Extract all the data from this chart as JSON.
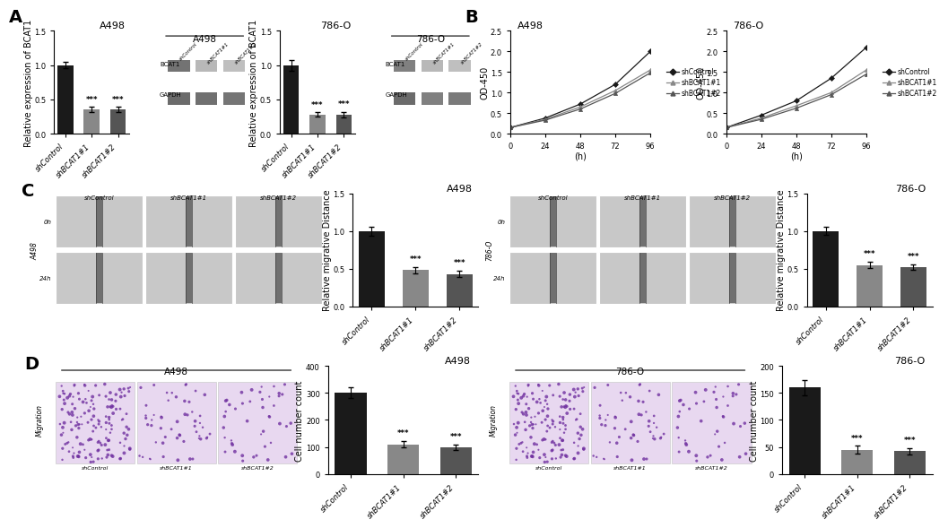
{
  "panel_A": {
    "bar_chart_A498": {
      "title": "A498",
      "categories": [
        "shControl",
        "shBCAT1#1",
        "shBCAT1#2"
      ],
      "values": [
        1.0,
        0.35,
        0.35
      ],
      "errors": [
        0.05,
        0.04,
        0.04
      ],
      "colors": [
        "#1a1a1a",
        "#888888",
        "#555555"
      ],
      "ylabel": "Relative expression of BCAT1",
      "ylim": [
        0,
        1.5
      ],
      "yticks": [
        0.0,
        0.5,
        1.0,
        1.5
      ],
      "sig_labels": [
        "",
        "***",
        "***"
      ]
    },
    "bar_chart_786O": {
      "title": "786-O",
      "categories": [
        "shControl",
        "shBCAT1#1",
        "shBCAT1#2"
      ],
      "values": [
        1.0,
        0.28,
        0.28
      ],
      "errors": [
        0.08,
        0.03,
        0.04
      ],
      "colors": [
        "#1a1a1a",
        "#888888",
        "#555555"
      ],
      "ylabel": "Relative expression of BCAT1",
      "ylim": [
        0,
        1.5
      ],
      "yticks": [
        0.0,
        0.5,
        1.0,
        1.5
      ],
      "sig_labels": [
        "",
        "***",
        "***"
      ]
    }
  },
  "panel_B": {
    "line_chart_A498": {
      "title": "A498",
      "xlabel": "(h)",
      "ylabel": "OD-450",
      "xlim": [
        0,
        96
      ],
      "ylim": [
        0.0,
        2.5
      ],
      "xticks": [
        0,
        24,
        48,
        72,
        96
      ],
      "yticks": [
        0.0,
        0.5,
        1.0,
        1.5,
        2.0,
        2.5
      ],
      "series": {
        "shControl": {
          "x": [
            0,
            24,
            48,
            72,
            96
          ],
          "y": [
            0.15,
            0.38,
            0.72,
            1.2,
            2.0
          ],
          "color": "#1a1a1a",
          "marker": "D"
        },
        "shBCAT1#1": {
          "x": [
            0,
            24,
            48,
            72,
            96
          ],
          "y": [
            0.15,
            0.35,
            0.65,
            1.05,
            1.55
          ],
          "color": "#888888",
          "marker": "^"
        },
        "shBCAT1#2": {
          "x": [
            0,
            24,
            48,
            72,
            96
          ],
          "y": [
            0.15,
            0.33,
            0.6,
            0.98,
            1.48
          ],
          "color": "#555555",
          "marker": "^"
        }
      }
    },
    "line_chart_786O": {
      "title": "786-O",
      "xlabel": "(h)",
      "ylabel": "OD-450",
      "xlim": [
        0,
        96
      ],
      "ylim": [
        0.0,
        2.5
      ],
      "xticks": [
        0,
        24,
        48,
        72,
        96
      ],
      "yticks": [
        0.0,
        0.5,
        1.0,
        1.5,
        2.0,
        2.5
      ],
      "series": {
        "shControl": {
          "x": [
            0,
            24,
            48,
            72,
            96
          ],
          "y": [
            0.15,
            0.45,
            0.8,
            1.35,
            2.1
          ],
          "color": "#1a1a1a",
          "marker": "D"
        },
        "shBCAT1#1": {
          "x": [
            0,
            24,
            48,
            72,
            96
          ],
          "y": [
            0.15,
            0.38,
            0.68,
            1.0,
            1.55
          ],
          "color": "#888888",
          "marker": "^"
        },
        "shBCAT1#2": {
          "x": [
            0,
            24,
            48,
            72,
            96
          ],
          "y": [
            0.15,
            0.35,
            0.62,
            0.95,
            1.45
          ],
          "color": "#555555",
          "marker": "^"
        }
      }
    }
  },
  "panel_C": {
    "bar_chart_A498": {
      "title": "A498",
      "categories": [
        "shControl",
        "shBCAT1#1",
        "shBCAT1#2"
      ],
      "values": [
        1.0,
        0.48,
        0.43
      ],
      "errors": [
        0.06,
        0.04,
        0.04
      ],
      "colors": [
        "#1a1a1a",
        "#888888",
        "#555555"
      ],
      "ylabel": "Relative migrative Distance",
      "ylim": [
        0,
        1.5
      ],
      "yticks": [
        0.0,
        0.5,
        1.0,
        1.5
      ],
      "sig_labels": [
        "",
        "***",
        "***"
      ]
    },
    "bar_chart_786O": {
      "title": "786-O",
      "categories": [
        "shControl",
        "shBCAT1#1",
        "shBCAT1#2"
      ],
      "values": [
        1.0,
        0.55,
        0.52
      ],
      "errors": [
        0.05,
        0.04,
        0.04
      ],
      "colors": [
        "#1a1a1a",
        "#888888",
        "#555555"
      ],
      "ylabel": "Relative migrative Distance",
      "ylim": [
        0,
        1.5
      ],
      "yticks": [
        0.0,
        0.5,
        1.0,
        1.5
      ],
      "sig_labels": [
        "",
        "***",
        "***"
      ]
    }
  },
  "panel_D": {
    "bar_chart_A498": {
      "title": "A498",
      "categories": [
        "shControl",
        "shBCAT1#1",
        "shBCAT1#2"
      ],
      "values": [
        300,
        110,
        100
      ],
      "errors": [
        20,
        12,
        10
      ],
      "colors": [
        "#1a1a1a",
        "#888888",
        "#555555"
      ],
      "ylabel": "Cell number count",
      "ylim": [
        0,
        400
      ],
      "yticks": [
        0,
        100,
        200,
        300,
        400
      ],
      "sig_labels": [
        "",
        "***",
        "***"
      ]
    },
    "bar_chart_786O": {
      "title": "786-O",
      "categories": [
        "shControl",
        "shBCAT1#1",
        "shBCAT1#2"
      ],
      "values": [
        160,
        45,
        42
      ],
      "errors": [
        14,
        7,
        6
      ],
      "colors": [
        "#1a1a1a",
        "#888888",
        "#555555"
      ],
      "ylabel": "Cell number count",
      "ylim": [
        0,
        200
      ],
      "yticks": [
        0,
        50,
        100,
        150,
        200
      ],
      "sig_labels": [
        "",
        "***",
        "***"
      ]
    }
  },
  "wb_A498": {
    "cell_line_label": "A498",
    "row_labels": [
      "BCAT1",
      "GAPDH"
    ],
    "col_labels": [
      "shControl",
      "shBCAT1#1",
      "shBCAT1#2"
    ],
    "bcat1_grays": [
      0.45,
      0.72,
      0.75
    ],
    "gapdh_grays": [
      0.42,
      0.44,
      0.46
    ]
  },
  "wb_786O": {
    "cell_line_label": "786-O",
    "row_labels": [
      "BCAT1",
      "GAPDH"
    ],
    "col_labels": [
      "shControl",
      "shBCAT1#1",
      "shBCAT1#2"
    ],
    "bcat1_grays": [
      0.5,
      0.72,
      0.75
    ],
    "gapdh_grays": [
      0.42,
      0.5,
      0.48
    ]
  },
  "bg_color": "#ffffff",
  "panel_label_fontsize": 14,
  "title_fontsize": 8,
  "tick_fontsize": 6,
  "axis_label_fontsize": 7,
  "wound_bg": "#c8c8c8",
  "wound_scratch": "#707070",
  "wound_border": "#ffffff",
  "invasion_bg": "#e8d8f0",
  "invasion_dot_color": "#7030a0"
}
